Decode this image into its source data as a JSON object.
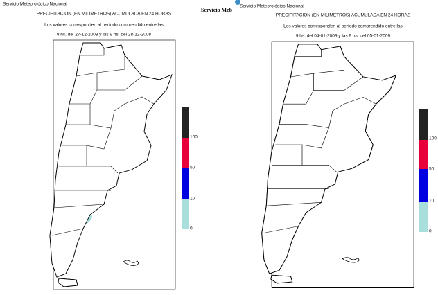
{
  "maps": [
    {
      "agency": "Servicio Meteorológico Nacional",
      "title": "PRECIPITACION (EN MILIMETROS) ACUMULADA EN 24 HORAS",
      "period_intro": "Los valores corresponden al período comprendido entre las",
      "period": "9 hs. del 27-12-2008 y las 9 hs. del 28-12-2008",
      "legend": [
        100,
        50,
        10,
        0
      ]
    },
    {
      "agency_short": "Servicio Meb",
      "agency": "Servicio Meteorológico Nacional",
      "title": "PRECIPITACION (EN MILIMETROS) ACUMULADA EN 24 HORAS",
      "period_intro": "Los valores corresponden al período comprendido entre las",
      "period": "9 hs. del 04-01-2009 y las 9 hs. del 05-01-2009",
      "legend": [
        100,
        50,
        10,
        0
      ]
    }
  ]
}
